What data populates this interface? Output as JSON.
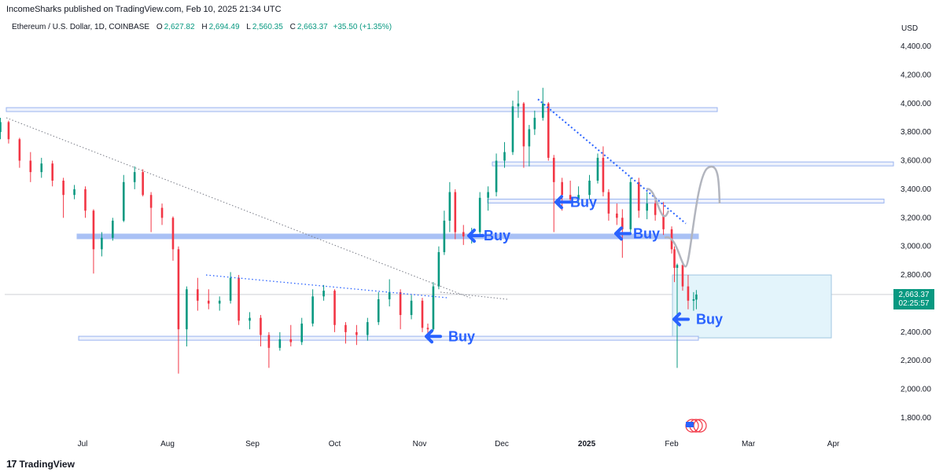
{
  "header": {
    "published": "IncomeSharks published on TradingView.com, Feb 10, 2025 21:34 UTC"
  },
  "symbol": {
    "name": "Ethereum / U.S. Dollar, 1D, COINBASE",
    "o_label": "O",
    "o_value": "2,627.82",
    "h_label": "H",
    "h_value": "2,694.49",
    "l_label": "L",
    "l_value": "2,560.35",
    "c_label": "C",
    "c_value": "2,663.37",
    "change": "+35.50 (+1.35%)"
  },
  "currency": "USD",
  "price_tag": {
    "price": "2,663.37",
    "countdown": "02:25:57"
  },
  "footer": {
    "brand": "TradingView",
    "logo_glyph": "17"
  },
  "colors": {
    "up": "#089981",
    "down": "#f23645",
    "annotation": "#2962ff",
    "zone_fill": "#e3f4fb",
    "zone_stroke": "#9fc6e0",
    "band": "#9ab4f0",
    "projection": "#b2b5be"
  },
  "chart_data": {
    "type": "candlestick",
    "instrument": "ETH/USD",
    "interval": "1D",
    "ylim": [
      1700,
      4500
    ],
    "y_ticks": [
      "4,400.00",
      "4,200.00",
      "4,000.00",
      "3,800.00",
      "3,600.00",
      "3,400.00",
      "3,200.00",
      "3,000.00",
      "2,800.00",
      "2,600.00",
      "2,400.00",
      "2,200.00",
      "2,000.00",
      "1,800.00"
    ],
    "x_ticks": [
      "Jul",
      "Aug",
      "Sep",
      "Oct",
      "Nov",
      "Dec",
      "2025",
      "Feb",
      "Mar",
      "Apr"
    ],
    "candles": [
      {
        "date": "2024-06-01",
        "o": 3800,
        "h": 3900,
        "l": 3750,
        "c": 3870
      },
      {
        "date": "2024-06-04",
        "o": 3870,
        "h": 3880,
        "l": 3720,
        "c": 3750
      },
      {
        "date": "2024-06-08",
        "o": 3750,
        "h": 3760,
        "l": 3550,
        "c": 3600
      },
      {
        "date": "2024-06-12",
        "o": 3600,
        "h": 3660,
        "l": 3450,
        "c": 3520
      },
      {
        "date": "2024-06-16",
        "o": 3520,
        "h": 3620,
        "l": 3480,
        "c": 3580
      },
      {
        "date": "2024-06-20",
        "o": 3580,
        "h": 3600,
        "l": 3420,
        "c": 3460
      },
      {
        "date": "2024-06-24",
        "o": 3460,
        "h": 3480,
        "l": 3200,
        "c": 3360
      },
      {
        "date": "2024-06-28",
        "o": 3360,
        "h": 3430,
        "l": 3330,
        "c": 3400
      },
      {
        "date": "2024-07-02",
        "o": 3400,
        "h": 3420,
        "l": 3200,
        "c": 3250
      },
      {
        "date": "2024-07-05",
        "o": 3250,
        "h": 3260,
        "l": 2810,
        "c": 2980
      },
      {
        "date": "2024-07-08",
        "o": 2980,
        "h": 3100,
        "l": 2930,
        "c": 3060
      },
      {
        "date": "2024-07-12",
        "o": 3060,
        "h": 3200,
        "l": 3040,
        "c": 3180
      },
      {
        "date": "2024-07-16",
        "o": 3180,
        "h": 3500,
        "l": 3170,
        "c": 3450
      },
      {
        "date": "2024-07-20",
        "o": 3450,
        "h": 3560,
        "l": 3400,
        "c": 3520
      },
      {
        "date": "2024-07-23",
        "o": 3520,
        "h": 3540,
        "l": 3350,
        "c": 3360
      },
      {
        "date": "2024-07-26",
        "o": 3360,
        "h": 3380,
        "l": 3100,
        "c": 3270
      },
      {
        "date": "2024-07-30",
        "o": 3270,
        "h": 3300,
        "l": 3150,
        "c": 3200
      },
      {
        "date": "2024-08-03",
        "o": 3200,
        "h": 3210,
        "l": 2900,
        "c": 2980
      },
      {
        "date": "2024-08-05",
        "o": 2980,
        "h": 3000,
        "l": 2110,
        "c": 2420
      },
      {
        "date": "2024-08-08",
        "o": 2420,
        "h": 2720,
        "l": 2300,
        "c": 2700
      },
      {
        "date": "2024-08-12",
        "o": 2700,
        "h": 2780,
        "l": 2550,
        "c": 2620
      },
      {
        "date": "2024-08-16",
        "o": 2620,
        "h": 2700,
        "l": 2560,
        "c": 2600
      },
      {
        "date": "2024-08-20",
        "o": 2600,
        "h": 2650,
        "l": 2550,
        "c": 2620
      },
      {
        "date": "2024-08-24",
        "o": 2620,
        "h": 2820,
        "l": 2600,
        "c": 2780
      },
      {
        "date": "2024-08-27",
        "o": 2780,
        "h": 2800,
        "l": 2450,
        "c": 2480
      },
      {
        "date": "2024-08-31",
        "o": 2480,
        "h": 2540,
        "l": 2420,
        "c": 2500
      },
      {
        "date": "2024-09-04",
        "o": 2500,
        "h": 2520,
        "l": 2300,
        "c": 2380
      },
      {
        "date": "2024-09-07",
        "o": 2380,
        "h": 2400,
        "l": 2150,
        "c": 2290
      },
      {
        "date": "2024-09-11",
        "o": 2290,
        "h": 2400,
        "l": 2270,
        "c": 2350
      },
      {
        "date": "2024-09-15",
        "o": 2350,
        "h": 2450,
        "l": 2300,
        "c": 2330
      },
      {
        "date": "2024-09-19",
        "o": 2330,
        "h": 2500,
        "l": 2310,
        "c": 2460
      },
      {
        "date": "2024-09-23",
        "o": 2460,
        "h": 2700,
        "l": 2440,
        "c": 2650
      },
      {
        "date": "2024-09-27",
        "o": 2650,
        "h": 2730,
        "l": 2620,
        "c": 2690
      },
      {
        "date": "2024-10-01",
        "o": 2690,
        "h": 2700,
        "l": 2400,
        "c": 2450
      },
      {
        "date": "2024-10-05",
        "o": 2450,
        "h": 2470,
        "l": 2320,
        "c": 2400
      },
      {
        "date": "2024-10-09",
        "o": 2400,
        "h": 2450,
        "l": 2310,
        "c": 2380
      },
      {
        "date": "2024-10-13",
        "o": 2380,
        "h": 2500,
        "l": 2340,
        "c": 2470
      },
      {
        "date": "2024-10-17",
        "o": 2470,
        "h": 2680,
        "l": 2450,
        "c": 2630
      },
      {
        "date": "2024-10-21",
        "o": 2630,
        "h": 2770,
        "l": 2580,
        "c": 2680
      },
      {
        "date": "2024-10-25",
        "o": 2680,
        "h": 2700,
        "l": 2420,
        "c": 2520
      },
      {
        "date": "2024-10-29",
        "o": 2520,
        "h": 2660,
        "l": 2490,
        "c": 2620
      },
      {
        "date": "2024-11-02",
        "o": 2620,
        "h": 2640,
        "l": 2400,
        "c": 2430
      },
      {
        "date": "2024-11-04",
        "o": 2430,
        "h": 2460,
        "l": 2360,
        "c": 2420
      },
      {
        "date": "2024-11-06",
        "o": 2420,
        "h": 2750,
        "l": 2410,
        "c": 2720
      },
      {
        "date": "2024-11-08",
        "o": 2720,
        "h": 3000,
        "l": 2700,
        "c": 2960
      },
      {
        "date": "2024-11-10",
        "o": 2960,
        "h": 3250,
        "l": 2940,
        "c": 3180
      },
      {
        "date": "2024-11-12",
        "o": 3180,
        "h": 3450,
        "l": 3100,
        "c": 3380
      },
      {
        "date": "2024-11-14",
        "o": 3380,
        "h": 3400,
        "l": 3050,
        "c": 3100
      },
      {
        "date": "2024-11-17",
        "o": 3100,
        "h": 3150,
        "l": 3010,
        "c": 3070
      },
      {
        "date": "2024-11-20",
        "o": 3070,
        "h": 3130,
        "l": 3020,
        "c": 3100
      },
      {
        "date": "2024-11-23",
        "o": 3100,
        "h": 3380,
        "l": 3080,
        "c": 3340
      },
      {
        "date": "2024-11-26",
        "o": 3340,
        "h": 3420,
        "l": 3250,
        "c": 3380
      },
      {
        "date": "2024-11-29",
        "o": 3380,
        "h": 3650,
        "l": 3350,
        "c": 3600
      },
      {
        "date": "2024-12-02",
        "o": 3600,
        "h": 3730,
        "l": 3550,
        "c": 3660
      },
      {
        "date": "2024-12-05",
        "o": 3660,
        "h": 4020,
        "l": 3640,
        "c": 3980
      },
      {
        "date": "2024-12-07",
        "o": 3980,
        "h": 4090,
        "l": 3900,
        "c": 4000
      },
      {
        "date": "2024-12-09",
        "o": 4000,
        "h": 4010,
        "l": 3550,
        "c": 3700
      },
      {
        "date": "2024-12-11",
        "o": 3700,
        "h": 3850,
        "l": 3560,
        "c": 3820
      },
      {
        "date": "2024-12-13",
        "o": 3820,
        "h": 3950,
        "l": 3780,
        "c": 3900
      },
      {
        "date": "2024-12-16",
        "o": 3900,
        "h": 4110,
        "l": 3880,
        "c": 4000
      },
      {
        "date": "2024-12-18",
        "o": 4000,
        "h": 4010,
        "l": 3600,
        "c": 3620
      },
      {
        "date": "2024-12-20",
        "o": 3620,
        "h": 3640,
        "l": 3100,
        "c": 3450
      },
      {
        "date": "2024-12-23",
        "o": 3450,
        "h": 3480,
        "l": 3250,
        "c": 3360
      },
      {
        "date": "2024-12-26",
        "o": 3360,
        "h": 3460,
        "l": 3300,
        "c": 3330
      },
      {
        "date": "2024-12-29",
        "o": 3330,
        "h": 3420,
        "l": 3300,
        "c": 3360
      },
      {
        "date": "2025-01-02",
        "o": 3360,
        "h": 3500,
        "l": 3330,
        "c": 3460
      },
      {
        "date": "2025-01-05",
        "o": 3460,
        "h": 3650,
        "l": 3440,
        "c": 3620
      },
      {
        "date": "2025-01-07",
        "o": 3620,
        "h": 3700,
        "l": 3350,
        "c": 3380
      },
      {
        "date": "2025-01-09",
        "o": 3380,
        "h": 3400,
        "l": 3180,
        "c": 3230
      },
      {
        "date": "2025-01-12",
        "o": 3230,
        "h": 3300,
        "l": 3150,
        "c": 3200
      },
      {
        "date": "2025-01-14",
        "o": 3200,
        "h": 3260,
        "l": 2920,
        "c": 3120
      },
      {
        "date": "2025-01-17",
        "o": 3120,
        "h": 3480,
        "l": 3100,
        "c": 3450
      },
      {
        "date": "2025-01-20",
        "o": 3450,
        "h": 3480,
        "l": 3200,
        "c": 3250
      },
      {
        "date": "2025-01-23",
        "o": 3250,
        "h": 3380,
        "l": 3190,
        "c": 3300
      },
      {
        "date": "2025-01-26",
        "o": 3300,
        "h": 3350,
        "l": 3180,
        "c": 3220
      },
      {
        "date": "2025-01-29",
        "o": 3220,
        "h": 3310,
        "l": 3080,
        "c": 3120
      },
      {
        "date": "2025-02-01",
        "o": 3120,
        "h": 3140,
        "l": 2950,
        "c": 2980
      },
      {
        "date": "2025-02-02",
        "o": 2980,
        "h": 3000,
        "l": 2750,
        "c": 2850
      },
      {
        "date": "2025-02-03",
        "o": 2850,
        "h": 2880,
        "l": 2150,
        "c": 2870
      },
      {
        "date": "2025-02-05",
        "o": 2870,
        "h": 2880,
        "l": 2690,
        "c": 2720
      },
      {
        "date": "2025-02-07",
        "o": 2720,
        "h": 2800,
        "l": 2560,
        "c": 2620
      },
      {
        "date": "2025-02-09",
        "o": 2620,
        "h": 2680,
        "l": 2550,
        "c": 2630
      },
      {
        "date": "2025-02-10",
        "o": 2627.82,
        "h": 2694.49,
        "l": 2560.35,
        "c": 2663.37
      }
    ],
    "annotations": {
      "buy_labels": [
        "Buy",
        "Buy",
        "Buy",
        "Buy",
        "Buy"
      ],
      "horizontal_levels": [
        3960,
        3580,
        3320,
        3070,
        2360
      ],
      "buy_zone": [
        2360,
        2800
      ],
      "last_price": 2663.37
    }
  }
}
